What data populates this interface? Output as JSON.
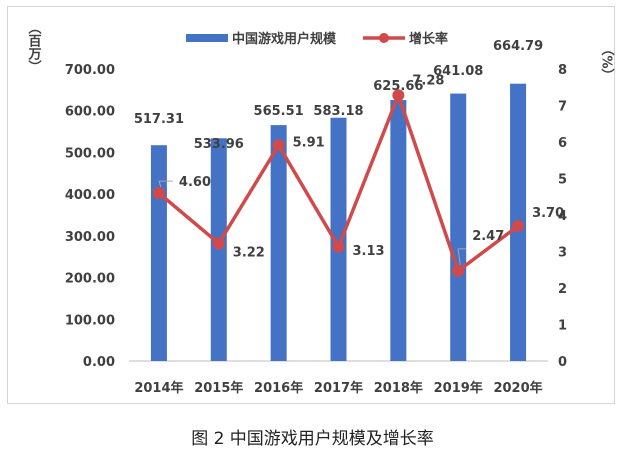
{
  "caption": "图 2  中国游戏用户规模及增长率",
  "chart_data": {
    "type": "bar",
    "categories": [
      "2014年",
      "2015年",
      "2016年",
      "2017年",
      "2018年",
      "2019年",
      "2020年"
    ],
    "series": [
      {
        "name": "中国游戏用户规模",
        "type": "bar",
        "axis": "left",
        "color": "#4472c4",
        "values": [
          517.31,
          533.96,
          565.51,
          583.18,
          625.66,
          641.08,
          664.79
        ],
        "labels": [
          "517.31",
          "533.96",
          "565.51",
          "583.18",
          "625.66",
          "641.08",
          "664.79"
        ]
      },
      {
        "name": "增长率",
        "type": "line",
        "axis": "right",
        "color": "#d04a4c",
        "values": [
          4.6,
          3.22,
          5.91,
          3.13,
          7.28,
          2.47,
          3.7
        ],
        "labels": [
          "4.60",
          "3.22",
          "5.91",
          "3.13",
          "7.28",
          "2.47",
          "3.70"
        ]
      }
    ],
    "y_left": {
      "label": "（百万）",
      "ylim": [
        0,
        700
      ],
      "ticks": [
        "0.00",
        "100.00",
        "200.00",
        "300.00",
        "400.00",
        "500.00",
        "600.00",
        "700.00"
      ]
    },
    "y_right": {
      "label": "（%）",
      "ylim": [
        0,
        8
      ],
      "ticks": [
        "0",
        "1",
        "2",
        "3",
        "4",
        "5",
        "6",
        "7",
        "8"
      ]
    },
    "grid": false,
    "legend": "top-center"
  }
}
